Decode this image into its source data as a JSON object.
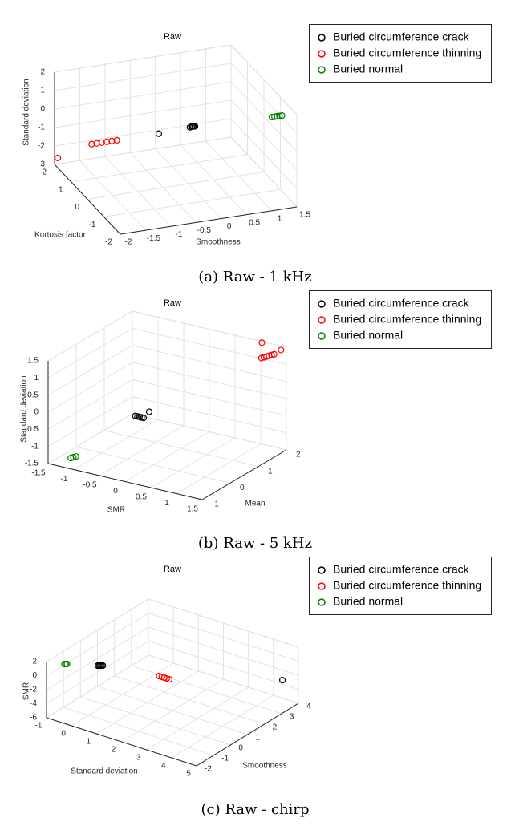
{
  "chart_data": [
    {
      "type": "scatter3d",
      "title": "Raw",
      "caption": "(a) Raw - 1 kHz",
      "xlabel": "Smoothness",
      "ylabel": "Kurtosis factor",
      "zlabel": "Standard deviation",
      "xlim": [
        -2,
        1.5
      ],
      "ylim": [
        -2,
        2
      ],
      "zlim": [
        -3,
        2
      ],
      "xticks": [
        -2,
        -1.5,
        -1,
        -0.5,
        0,
        0.5,
        1,
        1.5
      ],
      "yticks": [
        -2,
        -1,
        0,
        1,
        2
      ],
      "zticks": [
        -3,
        -2,
        -1,
        0,
        1,
        2
      ],
      "grid": true,
      "legend": "outside-right",
      "series": [
        {
          "name": "Buried circumference crack",
          "color": "#000000",
          "x": [
            -0.3,
            -0.27,
            -0.25,
            -0.23,
            -0.2,
            -0.95
          ],
          "y": [
            -1.02,
            -1.02,
            -1.02,
            -1.02,
            -1.02,
            -1.12
          ],
          "z": [
            1.15,
            1.17,
            1.18,
            1.17,
            1.16,
            1.17
          ]
        },
        {
          "name": "Buried circumference thinning",
          "color": "#ff0000",
          "x": [
            -1.9,
            -1.8,
            -1.7,
            -1.6,
            -1.5,
            -1.4,
            -2
          ],
          "y": [
            0.05,
            0.05,
            0.05,
            0.05,
            0.05,
            0.05,
            1.8
          ],
          "z": [
            -0.1,
            -0.1,
            -0.1,
            -0.1,
            -0.1,
            -0.1,
            -2.46
          ]
        },
        {
          "name": "Buried normal",
          "color": "#008000",
          "x": [
            1.3,
            1.35,
            1.4,
            1.45,
            1.5
          ],
          "y": [
            -1.1,
            -1.1,
            -1.1,
            -1.1,
            -1.1
          ],
          "z": [
            1.1,
            1.1,
            1.1,
            1.1,
            1.1
          ]
        }
      ]
    },
    {
      "type": "scatter3d",
      "title": "Raw",
      "caption": "(b) Raw - 5 kHz",
      "xlabel": "SMR",
      "ylabel": "Mean",
      "zlabel": "Standard deviation",
      "xlim": [
        -1.5,
        1.5
      ],
      "ylim": [
        -1,
        2
      ],
      "zlim": [
        -1.5,
        1.5
      ],
      "xticks": [
        -1.5,
        -1,
        -0.5,
        0,
        0.5,
        1,
        1.5
      ],
      "yticks": [
        -1,
        0,
        1,
        2
      ],
      "zticks": [
        -1.5,
        -1,
        -0.5,
        0,
        0.5,
        1,
        1.5
      ],
      "grid": true,
      "legend": "outside-right",
      "series": [
        {
          "name": "Buried circumference crack",
          "color": "#000000",
          "x": [
            -0.38,
            -0.34,
            -0.3,
            -0.26,
            -0.22,
            -0.15
          ],
          "y": [
            0.06,
            0.06,
            0.06,
            0.06,
            0.06,
            0.13
          ],
          "z": [
            -0.23,
            -0.23,
            -0.23,
            -0.23,
            -0.23,
            -0.06
          ]
        },
        {
          "name": "Buried circumference thinning",
          "color": "#ff0000",
          "x": [
            1.1,
            1.15,
            1.2,
            1.25,
            1.3,
            1.35,
            1.05,
            1.45
          ],
          "y": [
            1.84,
            1.84,
            1.84,
            1.84,
            1.84,
            1.84,
            1.95,
            1.9
          ],
          "z": [
            1.12,
            1.16,
            1.2,
            1.24,
            1.28,
            1.32,
            1.5,
            1.45
          ]
        },
        {
          "name": "Buried normal",
          "color": "#008000",
          "x": [
            -1.25,
            -1.2,
            -1.15
          ],
          "y": [
            -0.65,
            -0.65,
            -0.65
          ],
          "z": [
            -1.42,
            -1.38,
            -1.34
          ]
        }
      ]
    },
    {
      "type": "scatter3d",
      "title": "Raw",
      "caption": "(c) Raw - chirp",
      "xlabel": "Standard deviation",
      "ylabel": "Smoothness",
      "zlabel": "SMR",
      "xlim": [
        -1,
        5
      ],
      "ylim": [
        -2,
        4
      ],
      "zlim": [
        -6,
        2
      ],
      "xticks": [
        -1,
        0,
        1,
        2,
        3,
        4,
        5
      ],
      "yticks": [
        -2,
        -1,
        0,
        1,
        2,
        3,
        4
      ],
      "zticks": [
        -6,
        -4,
        -2,
        0,
        2
      ],
      "grid": true,
      "legend": "outside-right",
      "series": [
        {
          "name": "Buried circumference crack",
          "color": "#000000",
          "x": [
            0.1,
            0.15,
            0.2,
            0.25,
            0.3,
            4.7
          ],
          "y": [
            -0.6,
            -0.6,
            -0.6,
            -0.6,
            -0.6,
            3.5
          ],
          "z": [
            0.6,
            0.66,
            0.72,
            0.78,
            0.84,
            -2.3
          ]
        },
        {
          "name": "Buried circumference thinning",
          "color": "#ff0000",
          "x": [
            1.2,
            1.3,
            1.4,
            1.5,
            1.6
          ],
          "y": [
            1.4,
            1.4,
            1.4,
            1.4,
            1.4
          ],
          "z": [
            -2.6,
            -2.6,
            -2.6,
            -2.6,
            -2.6
          ]
        },
        {
          "name": "Buried normal",
          "color": "#008000",
          "x": [
            -0.75,
            -0.7,
            -0.65
          ],
          "y": [
            -1.31,
            -1.31,
            -1.31
          ],
          "z": [
            0.9,
            0.97,
            1.04
          ]
        }
      ]
    }
  ]
}
